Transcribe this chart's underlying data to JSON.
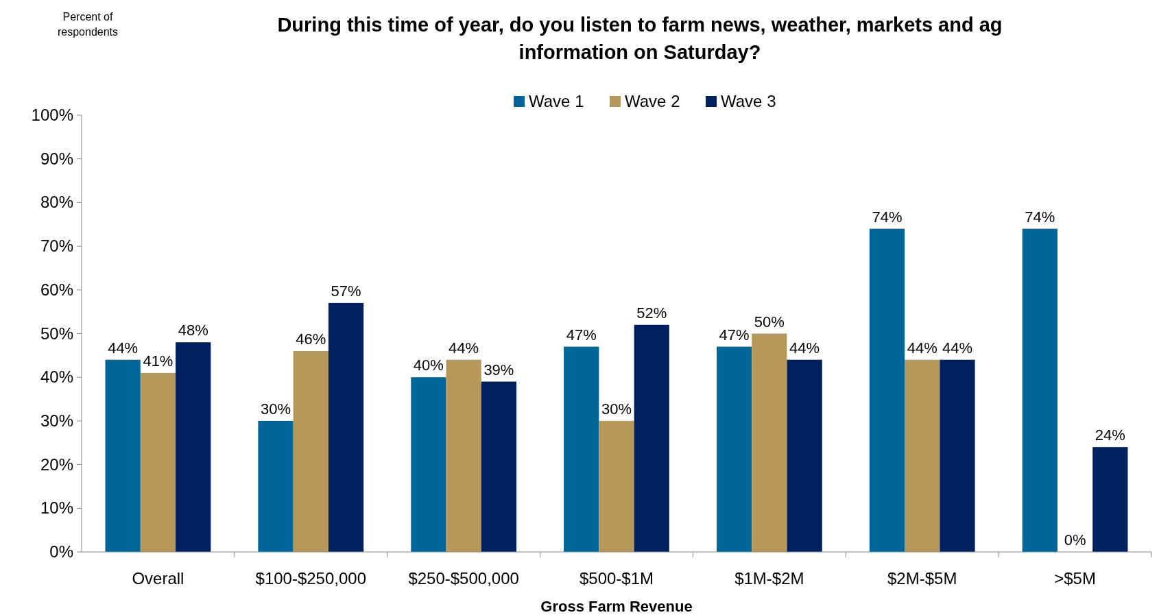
{
  "chart_data": {
    "type": "bar",
    "title": "During this time of year, do you listen to farm news, weather, markets and ag information on Saturday?",
    "annotations": [
      "Percent of respondents"
    ],
    "xlabel": "Gross Farm Revenue",
    "categories": [
      "Overall",
      "$100-$250,000",
      "$250-$500,000",
      "$500-$1M",
      "$1M-$2M",
      "$2M-$5M",
      ">$5M"
    ],
    "series": [
      {
        "name": "Wave 1",
        "color": "#00669a",
        "values": [
          44,
          30,
          40,
          47,
          47,
          74,
          74
        ],
        "value_labels": [
          "44%",
          "30%",
          "40%",
          "47%",
          "47%",
          "74%",
          "74%"
        ]
      },
      {
        "name": "Wave 2",
        "color": "#b5985a",
        "values": [
          41,
          46,
          44,
          30,
          50,
          44,
          0
        ],
        "value_labels": [
          "41%",
          "46%",
          "44%",
          "30%",
          "50%",
          "44%",
          "0%"
        ]
      },
      {
        "name": "Wave 3",
        "color": "#002060",
        "values": [
          48,
          57,
          39,
          52,
          44,
          44,
          24
        ],
        "value_labels": [
          "48%",
          "57%",
          "39%",
          "52%",
          "44%",
          "44%",
          "24%"
        ]
      }
    ],
    "ylim": [
      0,
      100
    ],
    "yticks": [
      {
        "value": 0,
        "label": "0%"
      },
      {
        "value": 10,
        "label": "10%"
      },
      {
        "value": 20,
        "label": "20%"
      },
      {
        "value": 30,
        "label": "30%"
      },
      {
        "value": 40,
        "label": "40%"
      },
      {
        "value": 50,
        "label": "50%"
      },
      {
        "value": 60,
        "label": "60%"
      },
      {
        "value": 70,
        "label": "70%"
      },
      {
        "value": 80,
        "label": "80%"
      },
      {
        "value": 90,
        "label": "90%"
      },
      {
        "value": 100,
        "label": "100%"
      }
    ],
    "legend": "top",
    "grid": false
  }
}
